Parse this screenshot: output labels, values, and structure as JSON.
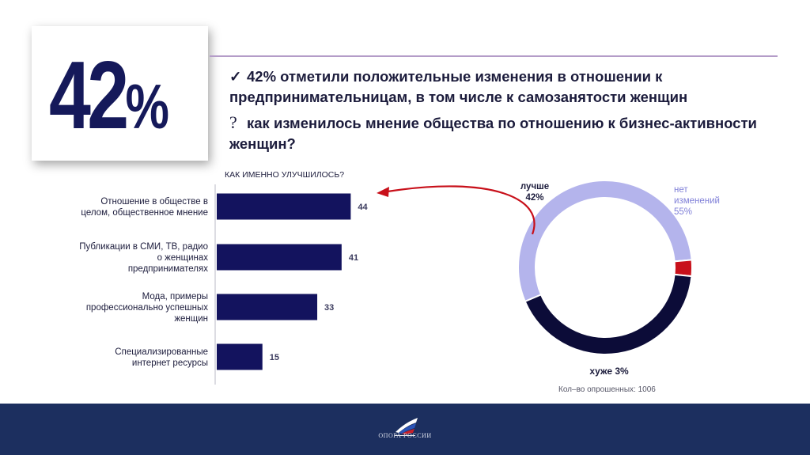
{
  "headline": {
    "number": "42",
    "percent": "%"
  },
  "statements": [
    {
      "mark": "✓",
      "text": "42% отметили положительные изменения в отношении к предпринимательницам, в том числе к самозанятости женщин"
    },
    {
      "mark": "?",
      "text": "как изменилось мнение общества по отношению к бизнес-активности женщин?"
    }
  ],
  "chart_data": [
    {
      "type": "bar",
      "orientation": "horizontal",
      "title": "КАК ИМЕННО УЛУЧШИЛОСЬ?",
      "categories": [
        [
          "Отношение в обществе в",
          "целом, общественное мнение"
        ],
        [
          "Публикации в СМИ, ТВ, радио",
          "о женщинах",
          "предпринимателях"
        ],
        [
          "Мода, примеры",
          "профессионально успешных",
          "женщин"
        ],
        [
          "Специализированные",
          "интернет ресурсы"
        ]
      ],
      "values": [
        44,
        41,
        33,
        15
      ],
      "xlim": [
        0,
        100
      ],
      "bar_color": "#13135e",
      "grid": false
    },
    {
      "type": "pie",
      "hole": true,
      "slices": [
        {
          "label": "лучше",
          "value": 42,
          "display": "42%",
          "color": "#0c0c38"
        },
        {
          "label": "нет изменений",
          "value": 55,
          "display": "55%",
          "color": "#b4b4ec"
        },
        {
          "label": "хуже",
          "value": 3,
          "display": "3%",
          "color": "#c8101a"
        }
      ]
    }
  ],
  "donut_labels": {
    "better_line1": "лучше",
    "better_line2": "42%",
    "none_line1": "нет",
    "none_line2": "изменений",
    "none_line3": "55%",
    "worse": "хуже 3%"
  },
  "respondents": "Кол–во опрошенных: 1006",
  "footer": {
    "org_name": "ОПОРА РОССИИ",
    "flag_colors": [
      "#ffffff",
      "#2b54b8",
      "#c8202a"
    ]
  }
}
